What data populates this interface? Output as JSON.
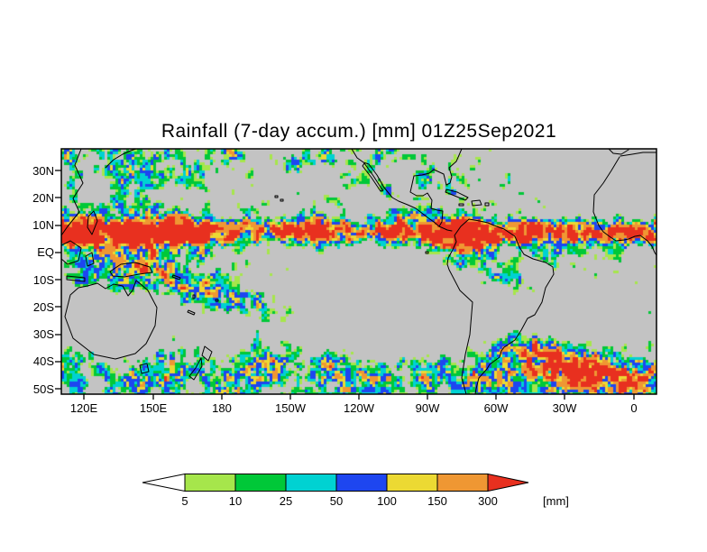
{
  "title": "Rainfall (7-day accum.) [mm] 01Z25Sep2021",
  "axes": {
    "lat_ticks": [
      "30N",
      "20N",
      "10N",
      "EQ",
      "10S",
      "20S",
      "30S",
      "40S",
      "50S"
    ],
    "lon_ticks": [
      "120E",
      "150E",
      "180",
      "150W",
      "120W",
      "90W",
      "60W",
      "30W",
      "0"
    ]
  },
  "colorbar": {
    "levels": [
      "5",
      "10",
      "25",
      "50",
      "100",
      "150",
      "300"
    ],
    "unit_label": "[mm]",
    "segment_colors": [
      "#ffffff",
      "#a6e64b",
      "#00c838",
      "#00d2d2",
      "#1e46f0",
      "#ecd933",
      "#ef9733",
      "#e8301f"
    ]
  },
  "chart_data": {
    "type": "heatmap",
    "title": "Rainfall (7-day accum.) [mm] 01Z25Sep2021",
    "variable": "7-day accumulated rainfall",
    "units": "mm",
    "valid_time": "01Z25Sep2021",
    "x_ticks": [
      "120E",
      "150E",
      "180",
      "150W",
      "120W",
      "90W",
      "60W",
      "30W",
      "0"
    ],
    "y_ticks": [
      "30N",
      "20N",
      "10N",
      "EQ",
      "10S",
      "20S",
      "30S",
      "40S",
      "50S"
    ],
    "x_range": [
      "110E eastward across dateline",
      "10E"
    ],
    "y_range": [
      "38N",
      "52S"
    ],
    "color_levels": [
      5,
      10,
      25,
      50,
      100,
      150,
      300
    ],
    "palette": [
      "#ffffff",
      "#a6e64b",
      "#00c838",
      "#00d2d2",
      "#1e46f0",
      "#ecd933",
      "#ef9733",
      "#e8301f"
    ],
    "background_color": "#c3c3c3",
    "legend_label": "[mm]",
    "legend_position": "bottom"
  }
}
